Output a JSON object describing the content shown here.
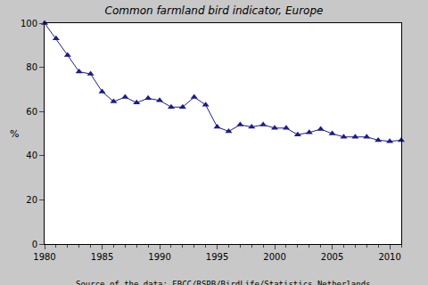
{
  "chart_data": {
    "type": "line",
    "title": "Common farmland bird indicator, Europe",
    "ylabel": "%",
    "source": "Source of the data: EBCC/RSPB/BirdLife/Statistics Netherlands",
    "x": [
      1980,
      1981,
      1982,
      1983,
      1984,
      1985,
      1986,
      1987,
      1988,
      1989,
      1990,
      1991,
      1992,
      1993,
      1994,
      1995,
      1996,
      1997,
      1998,
      1999,
      2000,
      2001,
      2002,
      2003,
      2004,
      2005,
      2006,
      2007,
      2008,
      2009,
      2010,
      2011
    ],
    "values": [
      100,
      93,
      85.5,
      78,
      77,
      69,
      64.5,
      66.5,
      64,
      66,
      65,
      62,
      62,
      66.5,
      63,
      53,
      51,
      54,
      53,
      54,
      52.5,
      52.5,
      49.5,
      50.5,
      52,
      50,
      48.5,
      48.5,
      48.5,
      47,
      46.5,
      47
    ],
    "color": "#1c1c8c",
    "marker": "triangle-up",
    "line_style": "solid",
    "xlim": [
      1980,
      2011
    ],
    "xticks": [
      1980,
      1985,
      1990,
      1995,
      2000,
      2005,
      2010
    ],
    "ylim": [
      0,
      100
    ],
    "yticks": [
      0,
      20,
      40,
      60,
      80,
      100
    ],
    "grid": false
  }
}
